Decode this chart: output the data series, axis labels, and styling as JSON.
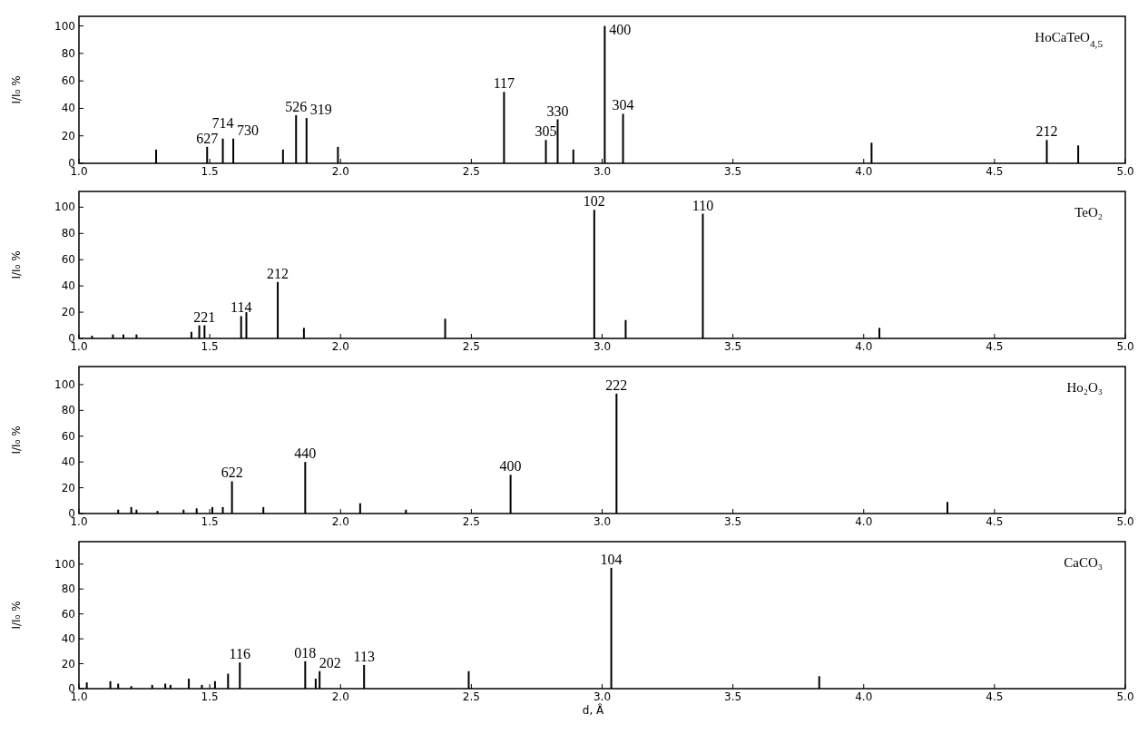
{
  "chart_data": [
    {
      "type": "bar",
      "title": "HoCaTeO$_{4,5}$",
      "ylabel": "I/I₀ %",
      "color": "#000000",
      "x": [
        1.295,
        1.49,
        1.55,
        1.59,
        1.78,
        1.83,
        1.87,
        1.99,
        2.625,
        2.785,
        2.83,
        2.89,
        3.01,
        3.08,
        4.03,
        4.7,
        4.82
      ],
      "values": [
        10,
        12,
        18,
        18,
        10,
        35,
        33,
        12,
        52,
        17,
        32,
        10,
        100,
        36,
        15,
        17,
        13
      ],
      "xlim": [
        1,
        5
      ],
      "xticks": [
        {
          "value": 1,
          "label": "1.0"
        },
        {
          "value": 1.5,
          "label": "1.5"
        },
        {
          "value": 2,
          "label": "2.0"
        },
        {
          "value": 2.5,
          "label": "2.5"
        },
        {
          "value": 3,
          "label": "3.0"
        },
        {
          "value": 3.5,
          "label": "3.5"
        },
        {
          "value": 4,
          "label": "4.0"
        },
        {
          "value": 4.5,
          "label": "4.5"
        },
        {
          "value": 5,
          "label": "5.0"
        }
      ],
      "ylim": [
        0,
        107
      ],
      "yticks": [
        0,
        20,
        40,
        60,
        80,
        100
      ],
      "annotations": [
        {
          "text": "627",
          "x": 1.49,
          "y": 12
        },
        {
          "text": "714",
          "x": 1.55,
          "y": 18
        },
        {
          "text": "730",
          "x": 1.59,
          "y": 18
        },
        {
          "text": "526",
          "x": 1.83,
          "y": 35
        },
        {
          "text": "319",
          "x": 1.87,
          "y": 33
        },
        {
          "text": "117",
          "x": 2.625,
          "y": 52
        },
        {
          "text": "305",
          "x": 2.785,
          "y": 17
        },
        {
          "text": "330",
          "x": 2.83,
          "y": 32
        },
        {
          "text": "400",
          "x": 3.01,
          "y": 100
        },
        {
          "text": "304",
          "x": 3.08,
          "y": 36
        },
        {
          "text": "212",
          "x": 4.7,
          "y": 17
        }
      ]
    },
    {
      "type": "bar",
      "title": "TeO₂",
      "ylabel": "I/I₀ %",
      "color": "#000000",
      "x": [
        1.05,
        1.13,
        1.17,
        1.22,
        1.43,
        1.46,
        1.48,
        1.62,
        1.64,
        1.76,
        1.86,
        2.4,
        2.97,
        3.09,
        3.385,
        4.06
      ],
      "values": [
        2,
        3,
        3,
        3,
        5,
        10,
        10,
        17,
        20,
        43,
        8,
        15,
        98,
        14,
        95,
        8
      ],
      "xlim": [
        1,
        5
      ],
      "xticks": [
        {
          "value": 1,
          "label": "1.0"
        },
        {
          "value": 1.5,
          "label": "1.5"
        },
        {
          "value": 2,
          "label": "2.0"
        },
        {
          "value": 2.5,
          "label": "2.5"
        },
        {
          "value": 3,
          "label": "3.0"
        },
        {
          "value": 3.5,
          "label": "3.5"
        },
        {
          "value": 4,
          "label": "4.0"
        },
        {
          "value": 4.5,
          "label": "4.5"
        },
        {
          "value": 5,
          "label": "5.0"
        }
      ],
      "ylim": [
        0,
        112
      ],
      "yticks": [
        0,
        20,
        40,
        60,
        80,
        100
      ],
      "annotations": [
        {
          "text": "221",
          "x": 1.48,
          "y": 10
        },
        {
          "text": "114",
          "x": 1.62,
          "y": 17
        },
        {
          "text": "212",
          "x": 1.76,
          "y": 43
        },
        {
          "text": "102",
          "x": 2.97,
          "y": 98
        },
        {
          "text": "110",
          "x": 3.385,
          "y": 95
        }
      ]
    },
    {
      "type": "bar",
      "title": "Ho₂O₃",
      "ylabel": "I/I₀ %",
      "color": "#000000",
      "x": [
        1.15,
        1.2,
        1.22,
        1.3,
        1.4,
        1.45,
        1.51,
        1.55,
        1.585,
        1.705,
        1.865,
        2.075,
        2.25,
        2.65,
        3.055,
        4.32
      ],
      "values": [
        3,
        5,
        3,
        2,
        3,
        4,
        5,
        5,
        25,
        5,
        40,
        8,
        3,
        30,
        93,
        9
      ],
      "xlim": [
        1,
        5
      ],
      "xticks": [
        {
          "value": 1,
          "label": "1.0"
        },
        {
          "value": 1.5,
          "label": "1.5"
        },
        {
          "value": 2,
          "label": "2.0"
        },
        {
          "value": 2.5,
          "label": "2.5"
        },
        {
          "value": 3,
          "label": "3.0"
        },
        {
          "value": 3.5,
          "label": "3.5"
        },
        {
          "value": 4,
          "label": "4.0"
        },
        {
          "value": 4.5,
          "label": "4.5"
        },
        {
          "value": 5,
          "label": "5.0"
        }
      ],
      "ylim": [
        0,
        114
      ],
      "yticks": [
        0,
        20,
        40,
        60,
        80,
        100
      ],
      "annotations": [
        {
          "text": "622",
          "x": 1.585,
          "y": 25
        },
        {
          "text": "440",
          "x": 1.865,
          "y": 40
        },
        {
          "text": "400",
          "x": 2.65,
          "y": 30
        },
        {
          "text": "222",
          "x": 3.055,
          "y": 93
        }
      ]
    },
    {
      "type": "bar",
      "title": "CaCO₃",
      "ylabel": "I/I₀ %",
      "xlabel": "d, Å",
      "color": "#000000",
      "x": [
        1.03,
        1.12,
        1.15,
        1.2,
        1.28,
        1.33,
        1.35,
        1.42,
        1.47,
        1.52,
        1.57,
        1.615,
        1.865,
        1.905,
        1.92,
        2.09,
        2.49,
        3.035,
        3.83
      ],
      "values": [
        5,
        6,
        4,
        2,
        3,
        4,
        3,
        8,
        3,
        6,
        12,
        21,
        22,
        8,
        14,
        19,
        14,
        97,
        10
      ],
      "xlim": [
        1,
        5
      ],
      "xticks": [
        {
          "value": 1,
          "label": "1.0"
        },
        {
          "value": 1.5,
          "label": "1.5"
        },
        {
          "value": 2,
          "label": "2.0"
        },
        {
          "value": 2.5,
          "label": "2.5"
        },
        {
          "value": 3,
          "label": "3.0"
        },
        {
          "value": 3.5,
          "label": "3.5"
        },
        {
          "value": 4,
          "label": "4.0"
        },
        {
          "value": 4.5,
          "label": "4.5"
        },
        {
          "value": 5,
          "label": "5.0"
        }
      ],
      "ylim": [
        0,
        118
      ],
      "yticks": [
        0,
        20,
        40,
        60,
        80,
        100
      ],
      "annotations": [
        {
          "text": "116",
          "x": 1.615,
          "y": 21
        },
        {
          "text": "018",
          "x": 1.865,
          "y": 22
        },
        {
          "text": "202",
          "x": 1.92,
          "y": 14
        },
        {
          "text": "113",
          "x": 2.09,
          "y": 19
        },
        {
          "text": "104",
          "x": 3.035,
          "y": 97
        }
      ]
    }
  ]
}
